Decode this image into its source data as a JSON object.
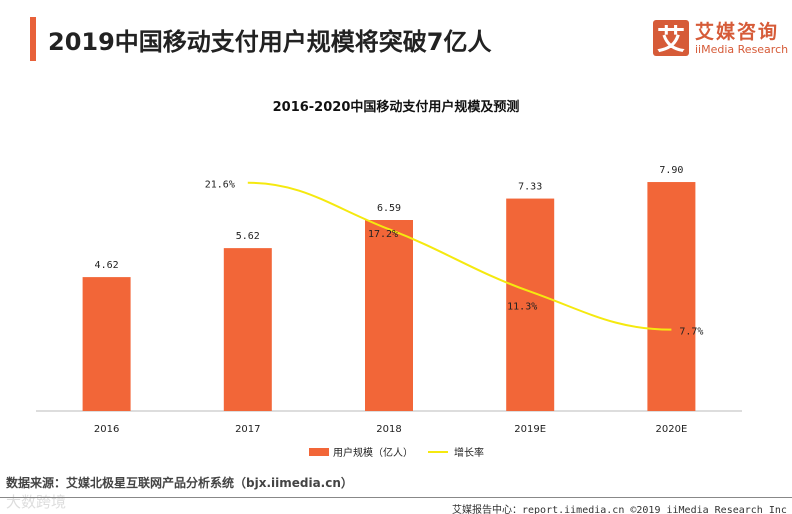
{
  "header": {
    "title": "2019中国移动支付用户规模将突破7亿人"
  },
  "logo": {
    "icon_char": "艾",
    "cn": "艾媒咨询",
    "en": "iiMedia Research"
  },
  "chart_data": {
    "type": "bar+line",
    "title": "2016-2020中国移动支付用户规模及预测",
    "categories": [
      "2016",
      "2017",
      "2018",
      "2019E",
      "2020E"
    ],
    "series": [
      {
        "name": "用户规模（亿人）",
        "type": "bar",
        "color": "#f26638",
        "values": [
          4.62,
          5.62,
          6.59,
          7.33,
          7.9
        ],
        "labels": [
          "4.62",
          "5.62",
          "6.59",
          "7.33",
          "7.90"
        ]
      },
      {
        "name": "增长率",
        "type": "line",
        "color": "#f5e90f",
        "values": [
          null,
          21.6,
          17.2,
          11.3,
          7.7
        ],
        "labels": [
          "",
          "21.6%",
          "17.2%",
          "11.3%",
          "7.7%"
        ]
      }
    ],
    "ylim": [
      0,
      8.35
    ],
    "y2lim": [
      0,
      22.9
    ],
    "grid": false,
    "legend": "bottom"
  },
  "footer": {
    "source": "数据来源：艾媒北极星互联网产品分析系统（bjx.iimedia.cn）",
    "watermark": "大数跨境",
    "credit": "艾媒报告中心：report.iimedia.cn  ©2019  iiMedia Research  Inc"
  }
}
